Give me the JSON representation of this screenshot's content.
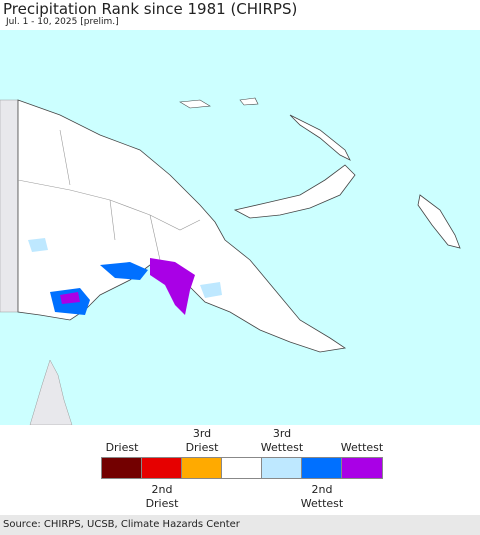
{
  "title": "Precipitation Rank since 1981 (CHIRPS)",
  "subtitle": "Jul. 1 - 10, 2025 [prelim.]",
  "legend": {
    "items": [
      {
        "color": "#730000",
        "label": "Driest",
        "row": "top"
      },
      {
        "color": "#e60000",
        "label": "2nd\nDriest",
        "row": "bottom"
      },
      {
        "color": "#ffaa00",
        "label": "3rd\nDriest",
        "row": "top"
      },
      {
        "color": "#ffffff"
      },
      {
        "color": "#bee8ff",
        "label": "3rd\nWettest",
        "row": "top"
      },
      {
        "color": "#0070ff",
        "label": "2nd\nWettest",
        "row": "bottom"
      },
      {
        "color": "#a900e6",
        "label": "Wettest",
        "row": "top"
      }
    ]
  },
  "source": "Source: CHIRPS, UCSB, Climate Hazards Center"
}
